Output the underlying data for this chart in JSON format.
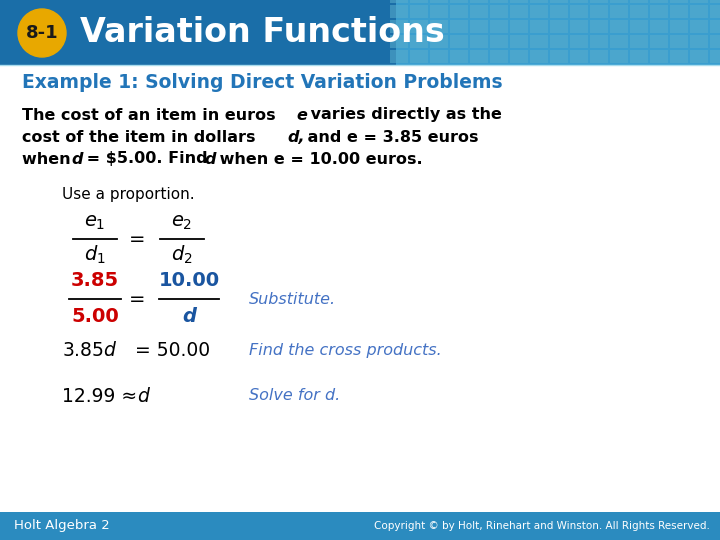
{
  "title_badge": "8-1",
  "title_text": "Variation Functions",
  "header_bg_left": "#1a6fa8",
  "header_bg_right": "#4aafd5",
  "badge_bg": "#e8a800",
  "badge_text_color": "#1a1a1a",
  "title_text_color": "#ffffff",
  "body_bg": "#ffffff",
  "example_title": "Example 1: Solving Direct Variation Problems",
  "example_title_color": "#2275b8",
  "body_text_color": "#000000",
  "fraction_color_red": "#cc0000",
  "fraction_color_blue": "#1a55a0",
  "fraction_color_black": "#000000",
  "italic_blue": "#4472c4",
  "footer_bg": "#2b8bbf",
  "footer_text_color": "#ffffff",
  "footer_left": "Holt Algebra 2",
  "footer_right": "Copyright © by Holt, Rinehart and Winston. All Rights Reserved.",
  "grid_color": "#5aaecd"
}
